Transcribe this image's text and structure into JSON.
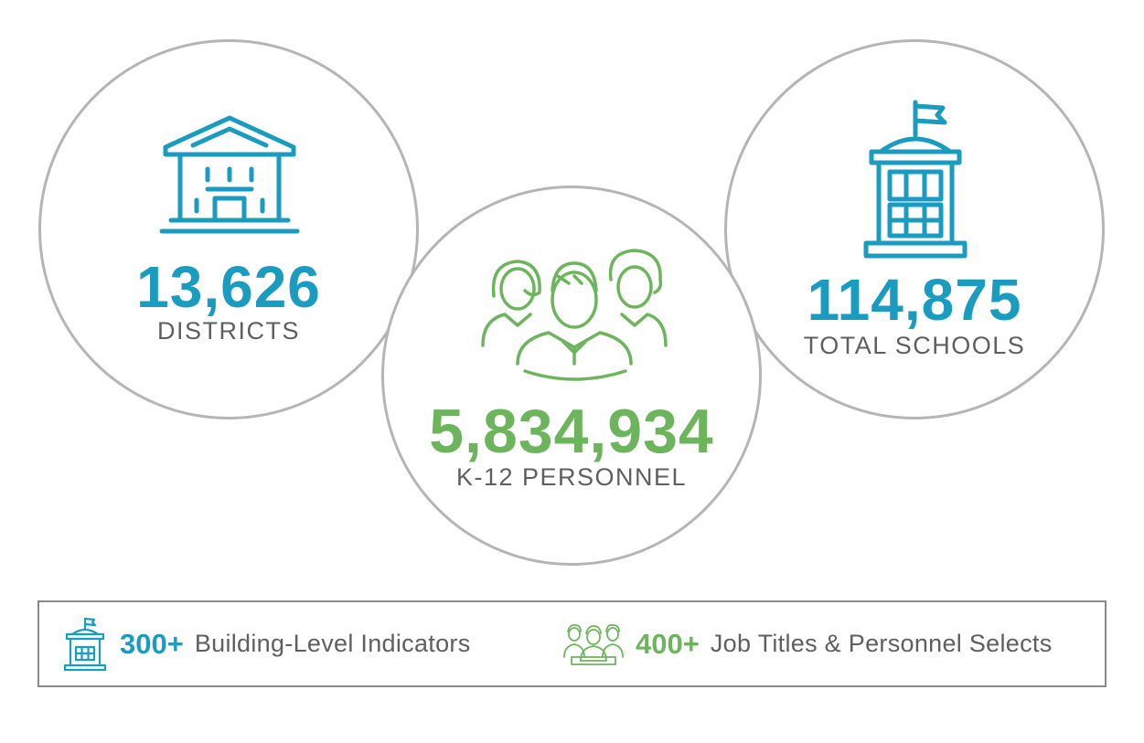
{
  "colors": {
    "blue": "#1a9bc0",
    "green": "#6db55c",
    "gray_text": "#5f5f5f",
    "circle_border": "#b5b5b5"
  },
  "stats": {
    "districts": {
      "value": "13,626",
      "label": "DISTRICTS",
      "icon": "district-building-icon"
    },
    "personnel": {
      "value": "5,834,934",
      "label": "K-12 PERSONNEL",
      "icon": "people-group-icon"
    },
    "schools": {
      "value": "114,875",
      "label": "TOTAL SCHOOLS",
      "icon": "school-building-icon"
    }
  },
  "features": [
    {
      "value": "300+",
      "text": "Building-Level Indicators",
      "icon": "school-building-icon"
    },
    {
      "value": "400+",
      "text": "Job Titles & Personnel Selects",
      "icon": "people-group-icon"
    }
  ]
}
